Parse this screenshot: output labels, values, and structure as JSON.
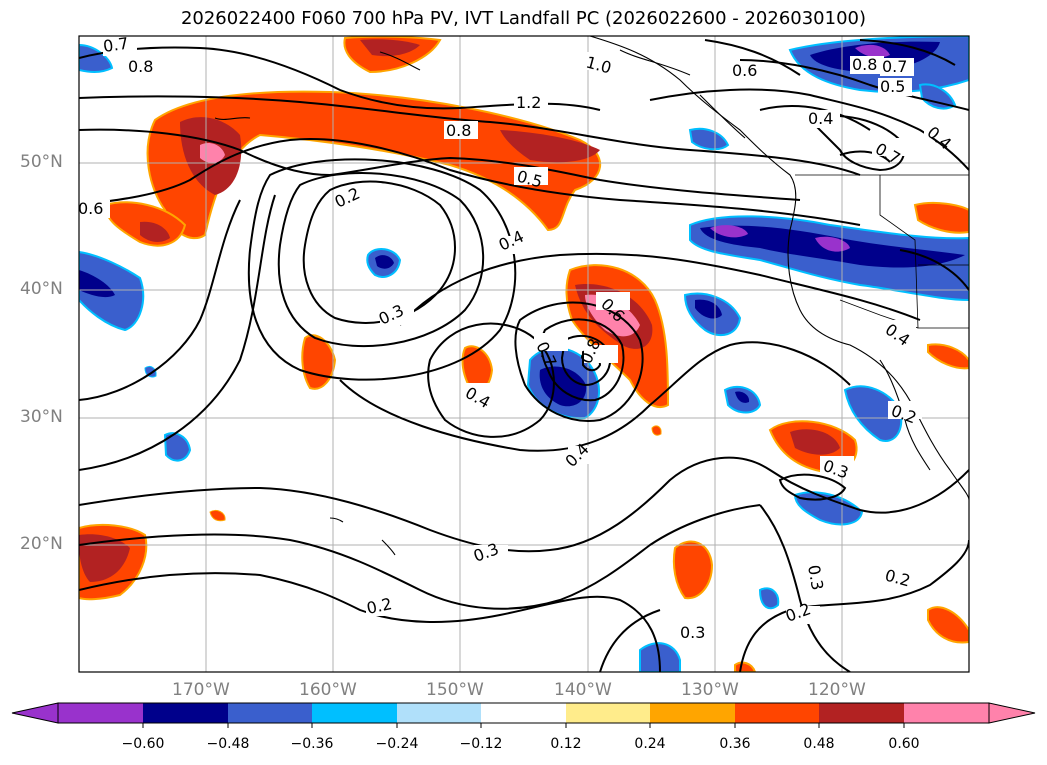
{
  "title": "2026022400 F060 700 hPa PV, IVT Landfall PC (2026022600 - 2026030100)",
  "lat_labels": [
    "50°N",
    "40°N",
    "30°N",
    "20°N"
  ],
  "lon_labels": [
    "170°W",
    "160°W",
    "150°W",
    "140°W",
    "130°W",
    "120°W"
  ],
  "contour_labels": [
    "0.7",
    "0.8",
    "1.0",
    "0.6",
    "0.8",
    "0.7",
    "0.5",
    "1.2",
    "0.8",
    "0.5",
    "0.4",
    "0.4",
    "0.7",
    "0.6",
    "0.2",
    "0.4",
    "0.3",
    "0.6",
    "0.7",
    "0.8",
    "0.4",
    "0.4",
    "0.2",
    "0.3",
    "0.4",
    "0.3",
    "0.3",
    "0.2",
    "0.2",
    "0.3",
    "0.2"
  ],
  "colorbar": {
    "ticks": [
      "−0.60",
      "−0.48",
      "−0.36",
      "−0.24",
      "−0.12",
      "0.12",
      "0.24",
      "0.36",
      "0.48",
      "0.60"
    ],
    "colors": {
      "below": "#9932cc",
      "neg_060_048": "#00008b",
      "neg_048_036": "#3a5fcd",
      "neg_036_024": "#00bfff",
      "neg_024_012": "#b0e0fa",
      "neutral": "#ffffff",
      "pos_012_024": "#ffec8b",
      "pos_024_036": "#ffa500",
      "pos_036_048": "#ff4500",
      "pos_048_060": "#b22222",
      "above": "#ff82ab"
    }
  }
}
